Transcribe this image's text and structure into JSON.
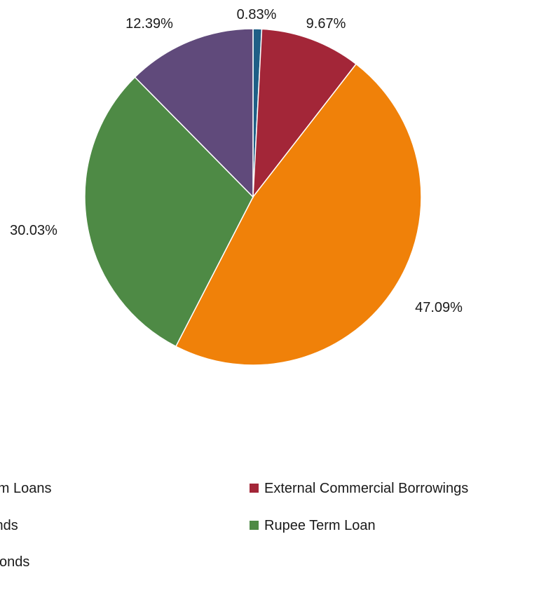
{
  "chart_data": {
    "type": "pie",
    "slices": [
      {
        "label": "Term Loans",
        "legend_text": "erm Loans",
        "value": 0.83,
        "display": "0.83%",
        "color": "#1f5f86"
      },
      {
        "label": "External Commercial Borrowings",
        "legend_text": "External Commercial Borrowings",
        "value": 9.67,
        "display": "9.67%",
        "color": "#a32638"
      },
      {
        "label": "Bonds",
        "legend_text": "Bonds",
        "value": 47.09,
        "display": "47.09%",
        "color": "#f08109"
      },
      {
        "label": "Rupee Term Loan",
        "legend_text": "Rupee Term Loan",
        "value": 30.03,
        "display": "30.03%",
        "color": "#4e8a45"
      },
      {
        "label": "e Bonds",
        "legend_text": "e Bonds",
        "value": 12.39,
        "display": "12.39%",
        "color": "#604a7b"
      }
    ],
    "start_angle_deg": 0,
    "direction": "clockwise",
    "legend_position": "bottom"
  }
}
